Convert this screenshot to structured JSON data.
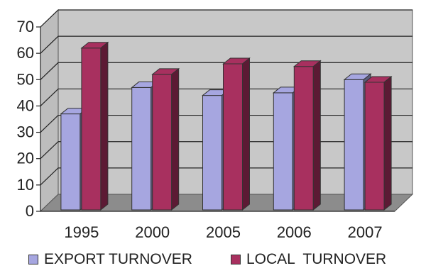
{
  "chart_data": {
    "type": "bar",
    "categories": [
      "1995",
      "2000",
      "2005",
      "2006",
      "2007"
    ],
    "series": [
      {
        "name": "EXPORT TURNOVER",
        "values": [
          37,
          47,
          44,
          45,
          50
        ],
        "color": "#a6a6e0"
      },
      {
        "name": "LOCAL  TURNOVER",
        "values": [
          62,
          52,
          56,
          55,
          49
        ],
        "color": "#a8305f"
      }
    ],
    "ylim": [
      0,
      70
    ],
    "yticks": [
      "0",
      "10",
      "20",
      "30",
      "40",
      "50",
      "60",
      "70"
    ],
    "grid": true,
    "three_d": true,
    "legend_position": "bottom",
    "wall_color": "#c8c8c8",
    "floor_color": "#8c8c8c"
  }
}
